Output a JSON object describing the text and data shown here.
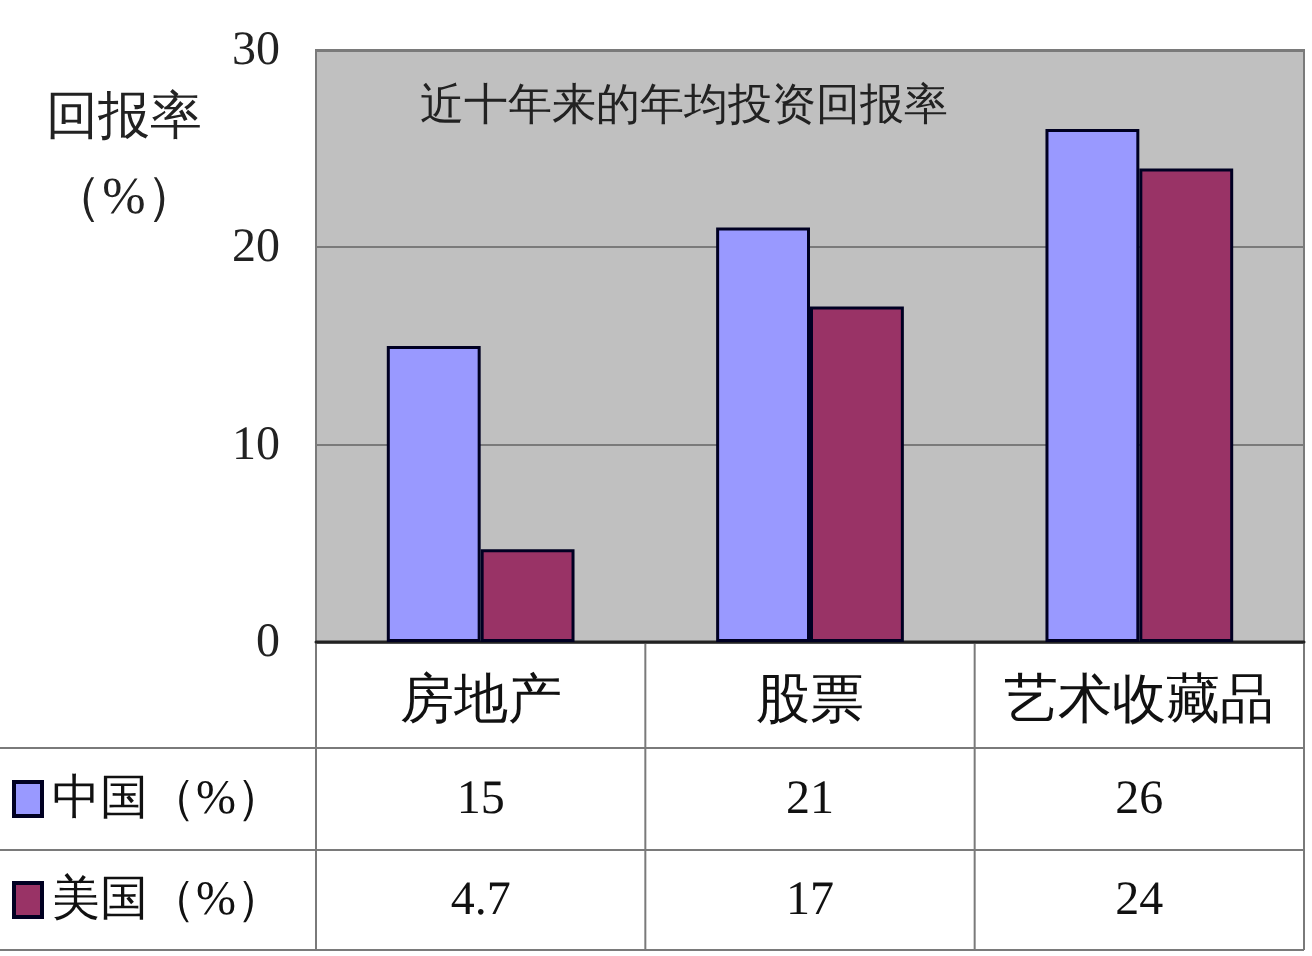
{
  "chart_data": {
    "type": "bar",
    "title": "近十年来的年均投资回报率",
    "ylabel": "回报率（%）",
    "categories": [
      "房地产",
      "股票",
      "艺术收藏品"
    ],
    "series": [
      {
        "name": "中国（%）",
        "color": "#9999ff",
        "values": [
          15,
          21,
          26
        ]
      },
      {
        "name": "美国（%）",
        "color": "#993366",
        "values": [
          4.7,
          17,
          24
        ]
      }
    ],
    "ylim": [
      0,
      30
    ],
    "yticks": [
      0,
      10,
      20,
      30
    ],
    "grid": "y",
    "legend": "bottom left",
    "data_labels": true
  }
}
